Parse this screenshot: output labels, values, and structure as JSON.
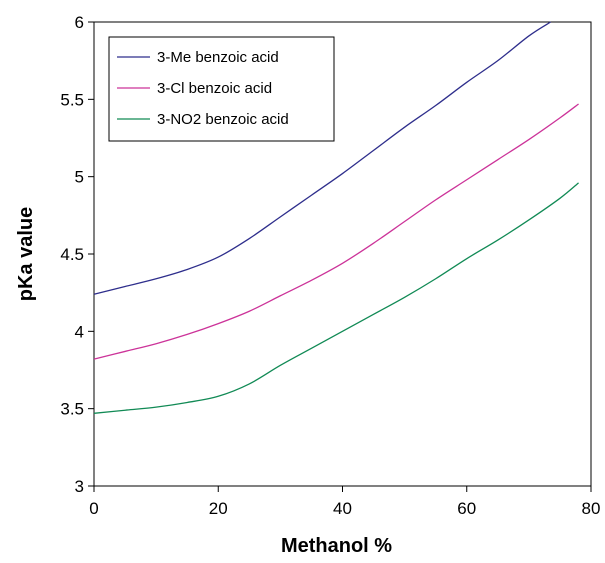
{
  "chart_data": {
    "type": "line",
    "title": "",
    "xlabel": "Methanol %",
    "ylabel": "pKa value",
    "xlim": [
      0,
      80
    ],
    "ylim": [
      3,
      6
    ],
    "xticks": [
      "0",
      "20",
      "40",
      "60",
      "80"
    ],
    "yticks": [
      "3",
      "3.5",
      "4",
      "4.5",
      "5",
      "5.5",
      "6"
    ],
    "grid": false,
    "legend_position": "top-left",
    "series": [
      {
        "name": "3-Me benzoic acid",
        "color": "#2e2e8c",
        "points": [
          [
            0,
            4.24
          ],
          [
            5,
            4.29
          ],
          [
            10,
            4.34
          ],
          [
            15,
            4.4
          ],
          [
            20,
            4.48
          ],
          [
            25,
            4.6
          ],
          [
            30,
            4.74
          ],
          [
            35,
            4.88
          ],
          [
            40,
            5.02
          ],
          [
            45,
            5.17
          ],
          [
            50,
            5.32
          ],
          [
            55,
            5.46
          ],
          [
            60,
            5.61
          ],
          [
            65,
            5.75
          ],
          [
            70,
            5.91
          ],
          [
            73.5,
            6.0
          ]
        ]
      },
      {
        "name": "3-Cl  benzoic acid",
        "color": "#cc3399",
        "points": [
          [
            0,
            3.82
          ],
          [
            5,
            3.87
          ],
          [
            10,
            3.92
          ],
          [
            15,
            3.98
          ],
          [
            20,
            4.05
          ],
          [
            25,
            4.13
          ],
          [
            30,
            4.23
          ],
          [
            35,
            4.33
          ],
          [
            40,
            4.44
          ],
          [
            45,
            4.57
          ],
          [
            50,
            4.71
          ],
          [
            55,
            4.85
          ],
          [
            60,
            4.98
          ],
          [
            65,
            5.11
          ],
          [
            70,
            5.24
          ],
          [
            75,
            5.38
          ],
          [
            78,
            5.47
          ]
        ]
      },
      {
        "name": "3-NO2  benzoic acid",
        "color": "#118a55",
        "points": [
          [
            0,
            3.47
          ],
          [
            5,
            3.49
          ],
          [
            10,
            3.51
          ],
          [
            15,
            3.54
          ],
          [
            20,
            3.58
          ],
          [
            25,
            3.66
          ],
          [
            30,
            3.78
          ],
          [
            35,
            3.89
          ],
          [
            40,
            4.0
          ],
          [
            45,
            4.11
          ],
          [
            50,
            4.22
          ],
          [
            55,
            4.34
          ],
          [
            60,
            4.47
          ],
          [
            65,
            4.59
          ],
          [
            70,
            4.72
          ],
          [
            75,
            4.86
          ],
          [
            78,
            4.96
          ]
        ]
      }
    ]
  }
}
